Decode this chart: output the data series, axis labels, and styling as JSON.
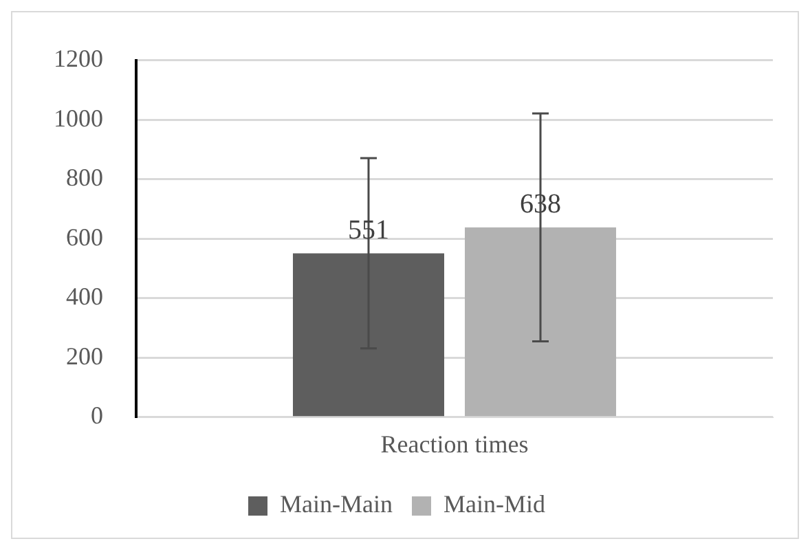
{
  "chart_data": {
    "type": "bar",
    "categories": [
      "Reaction times"
    ],
    "series": [
      {
        "name": "Main-Main",
        "color": "#5e5e5e",
        "values": [
          551
        ],
        "errors": [
          320
        ]
      },
      {
        "name": "Main-Mid",
        "color": "#b2b2b2",
        "values": [
          638
        ],
        "errors": [
          383
        ]
      }
    ],
    "ylim": [
      0,
      1200
    ],
    "yticks": [
      0,
      200,
      400,
      600,
      800,
      1000,
      1200
    ],
    "grid": "y",
    "legend": "bottom",
    "data_labels": true
  }
}
